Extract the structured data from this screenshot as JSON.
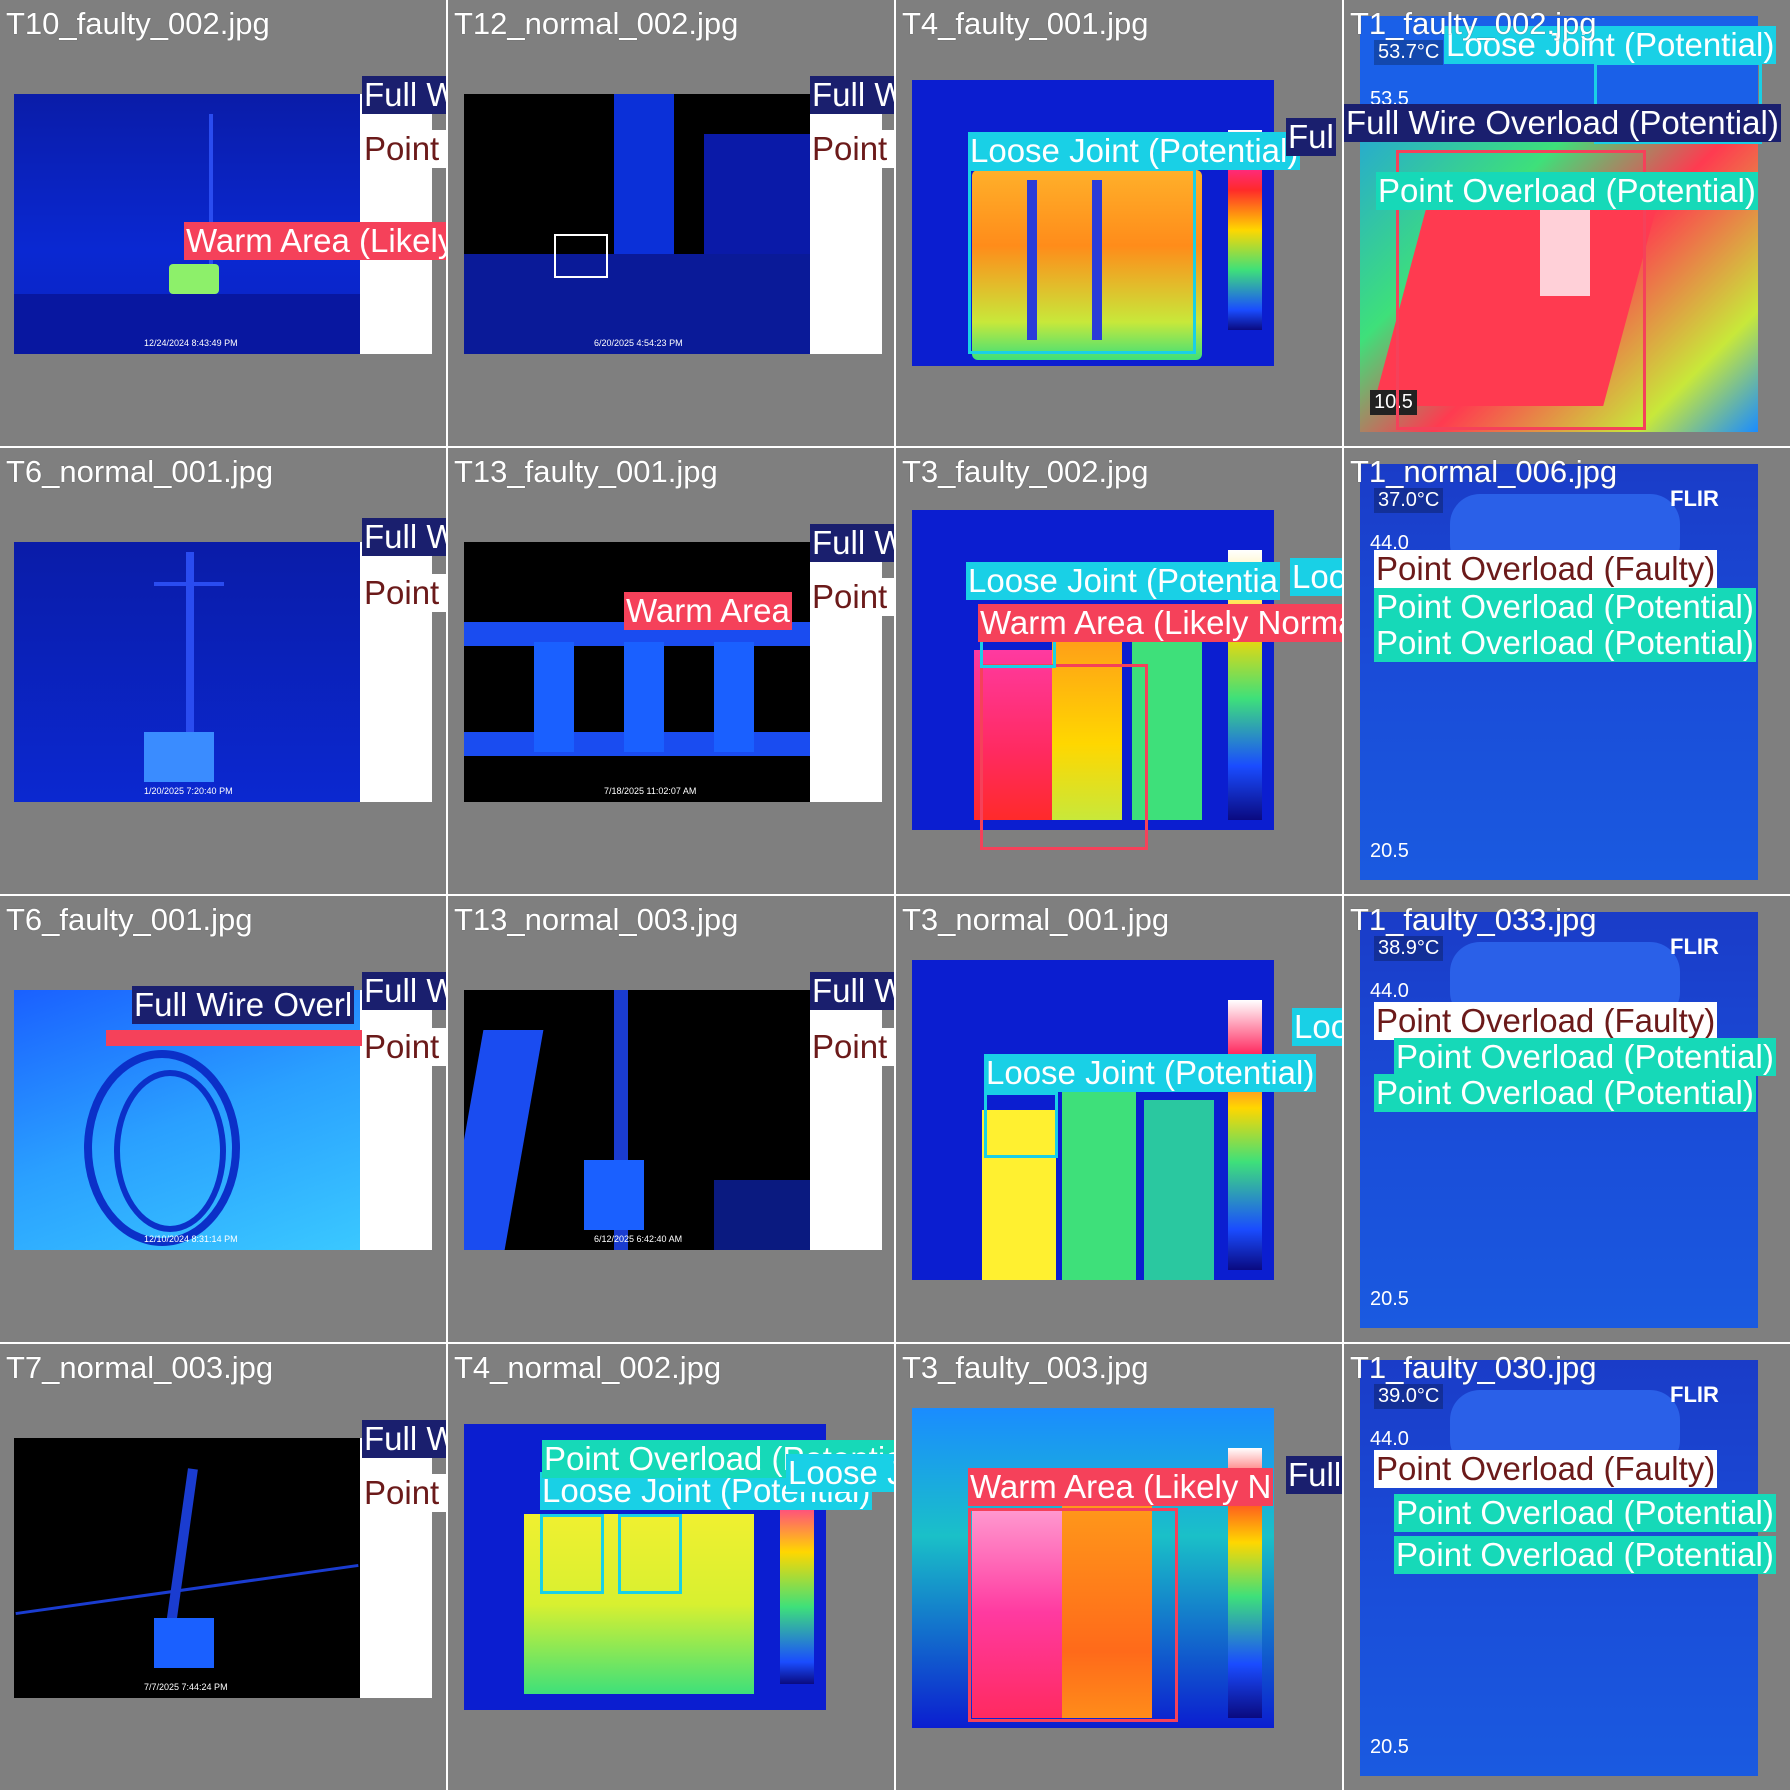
{
  "colors": {
    "full_wire": "#1a1f6e",
    "point_faulty": "#ffffff",
    "point_faulty_text": "#6b1a1a",
    "loose": "#19d0e6",
    "point_potential": "#16d9b8",
    "warm": "#f5415a"
  },
  "cells": [
    {
      "filename": "T10_faulty_002.jpg",
      "timestamp": "12/24/2024 8:43:49 PM",
      "labels": {
        "warm": "Warm Area (Likely Normal)",
        "full_wire": "Full Wire Overload (Potential",
        "point_faulty": "Point Overload (Faulty)"
      }
    },
    {
      "filename": "T12_normal_002.jpg",
      "timestamp": "6/20/2025 4:54:23 PM",
      "labels": {
        "full_wire": "Full Wire Overload (Potential)",
        "point_faulty": "Point Over"
      }
    },
    {
      "filename": "T4_faulty_001.jpg",
      "labels": {
        "loose": "Loose Joint (Potential)",
        "full_wire": "Ful"
      }
    },
    {
      "filename": "T1_faulty_002.jpg",
      "temp": "53.7°C",
      "scale_top": "53.5",
      "scale_bottom": "10.5",
      "labels": {
        "loose": "Loose Joint (Potential)",
        "full_wire": "Full Wire Overload (Potential)",
        "point_potential": "Point Overload (Potential)"
      }
    },
    {
      "filename": "T6_normal_001.jpg",
      "timestamp": "1/20/2025 7:20:40 PM",
      "labels": {
        "full_wire": "Full Wire Overload (Potential",
        "point_faulty": "Point Overload (Faulty)"
      }
    },
    {
      "filename": "T13_faulty_001.jpg",
      "timestamp": "7/18/2025 11:02:07 AM",
      "labels": {
        "warm": "Warm Area",
        "full_wire": "Full Wire Overload (Potential)",
        "point_faulty": "Point Over"
      }
    },
    {
      "filename": "T3_faulty_002.jpg",
      "labels": {
        "loose": "Loose Joint (Potentia",
        "warm": "Warm Area (Likely Norma",
        "loose2": "Loose"
      }
    },
    {
      "filename": "T1_normal_006.jpg",
      "temp": "37.0°C",
      "scale_top": "44.0",
      "scale_bottom": "20.5",
      "brand": "FLIR",
      "labels": {
        "point_faulty": "Point Overload (Faulty)",
        "point_potential": "Point Overload (Potential)",
        "point_potential2": "Point Overload (Potential)"
      }
    },
    {
      "filename": "T6_faulty_001.jpg",
      "timestamp": "12/10/2024 8:31:14 PM",
      "labels": {
        "full_wire": "Full Wire Overl",
        "full_wire2": "Full Wire Overload (Potential",
        "point_faulty": "Point Overload (Faulty)"
      }
    },
    {
      "filename": "T13_normal_003.jpg",
      "timestamp": "6/12/2025 6:42:40 AM",
      "labels": {
        "full_wire": "Full Wire Overload (Potential)",
        "point_faulty": "Point Overload (Faulty)"
      }
    },
    {
      "filename": "T3_normal_001.jpg",
      "labels": {
        "loose": "Loose Joint (Potential)",
        "loose2": "Loose"
      }
    },
    {
      "filename": "T1_faulty_033.jpg",
      "temp": "38.9°C",
      "scale_top": "44.0",
      "scale_bottom": "20.5",
      "brand": "FLIR",
      "labels": {
        "point_faulty": "Point Overload (Faulty)",
        "point_potential": "Point Overload (Potential)",
        "point_potential2": "Point Overload (Potential)"
      }
    },
    {
      "filename": "T7_normal_003.jpg",
      "timestamp": "7/7/2025 7:44:24 PM",
      "labels": {
        "full_wire": "Full Wire Overload (Potential)",
        "point_faulty": "Point Overl"
      }
    },
    {
      "filename": "T4_normal_002.jpg",
      "labels": {
        "point_potential": "Point Overload (Potential)",
        "loose": "Loose Joint (Potential)",
        "loose2": "Loose Jo"
      }
    },
    {
      "filename": "T3_faulty_003.jpg",
      "labels": {
        "warm": "Warm Area (Likely N",
        "full_wire": "Full W"
      }
    },
    {
      "filename": "T1_faulty_030.jpg",
      "temp": "39.0°C",
      "scale_top": "44.0",
      "scale_bottom": "20.5",
      "brand": "FLIR",
      "labels": {
        "point_faulty": "Point Overload (Faulty)",
        "point_potential": "Point Overload (Potential)",
        "point_potential2": "Point Overload (Potential)"
      }
    }
  ]
}
